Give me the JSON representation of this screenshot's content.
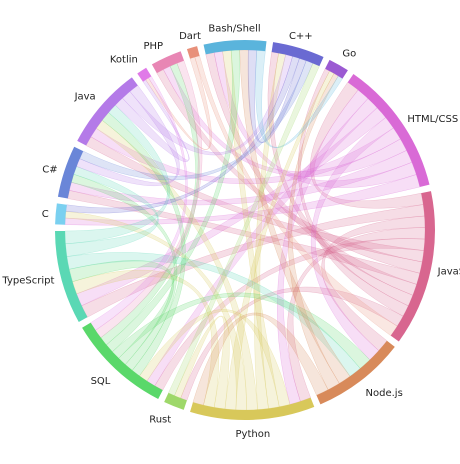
{
  "chart_data": {
    "type": "chord",
    "groups": [
      {
        "name": "Bash/Shell",
        "color": "#5ab4dc",
        "value": 6
      },
      {
        "name": "C++",
        "color": "#6a6ad2",
        "value": 5
      },
      {
        "name": "Go",
        "color": "#9b5ad2",
        "value": 2
      },
      {
        "name": "HTML/CSS",
        "color": "#d96ad6",
        "value": 13
      },
      {
        "name": "JavaScript",
        "color": "#d8668f",
        "value": 15
      },
      {
        "name": "Node.js",
        "color": "#d88a5a",
        "value": 9
      },
      {
        "name": "Python",
        "color": "#d8c85a",
        "value": 12
      },
      {
        "name": "Rust",
        "color": "#9ed86a",
        "value": 2
      },
      {
        "name": "SQL",
        "color": "#5ad86a",
        "value": 10
      },
      {
        "name": "TypeScript",
        "color": "#5ad8b4",
        "value": 9
      },
      {
        "name": "C",
        "color": "#7ad0f0",
        "value": 2
      },
      {
        "name": "C#",
        "color": "#6a86d8",
        "value": 5
      },
      {
        "name": "Java",
        "color": "#b47ae8",
        "value": 8
      },
      {
        "name": "Kotlin",
        "color": "#e07ae8",
        "value": 1
      },
      {
        "name": "PHP",
        "color": "#e886b4",
        "value": 3
      },
      {
        "name": "Dart",
        "color": "#e8907a",
        "value": 1
      }
    ],
    "links": [
      [
        "JavaScript",
        "HTML/CSS"
      ],
      [
        "JavaScript",
        "TypeScript"
      ],
      [
        "JavaScript",
        "Node.js"
      ],
      [
        "JavaScript",
        "Python"
      ],
      [
        "JavaScript",
        "SQL"
      ],
      [
        "JavaScript",
        "Java"
      ],
      [
        "JavaScript",
        "PHP"
      ],
      [
        "JavaScript",
        "C#"
      ],
      [
        "JavaScript",
        "Bash/Shell"
      ],
      [
        "JavaScript",
        "C++"
      ],
      [
        "JavaScript",
        "Go"
      ],
      [
        "JavaScript",
        "Rust"
      ],
      [
        "HTML/CSS",
        "Python"
      ],
      [
        "HTML/CSS",
        "SQL"
      ],
      [
        "HTML/CSS",
        "TypeScript"
      ],
      [
        "HTML/CSS",
        "Node.js"
      ],
      [
        "HTML/CSS",
        "Java"
      ],
      [
        "HTML/CSS",
        "PHP"
      ],
      [
        "HTML/CSS",
        "C#"
      ],
      [
        "HTML/CSS",
        "Bash/Shell"
      ],
      [
        "HTML/CSS",
        "C"
      ],
      [
        "Python",
        "SQL"
      ],
      [
        "Python",
        "Bash/Shell"
      ],
      [
        "Python",
        "C++"
      ],
      [
        "Python",
        "Java"
      ],
      [
        "Python",
        "C"
      ],
      [
        "Python",
        "Go"
      ],
      [
        "Python",
        "Rust"
      ],
      [
        "Python",
        "TypeScript"
      ],
      [
        "SQL",
        "Java"
      ],
      [
        "SQL",
        "C#"
      ],
      [
        "SQL",
        "TypeScript"
      ],
      [
        "SQL",
        "Node.js"
      ],
      [
        "SQL",
        "Bash/Shell"
      ],
      [
        "SQL",
        "PHP"
      ],
      [
        "TypeScript",
        "Node.js"
      ],
      [
        "TypeScript",
        "C#"
      ],
      [
        "TypeScript",
        "Java"
      ],
      [
        "Node.js",
        "Bash/Shell"
      ],
      [
        "Node.js",
        "Go"
      ],
      [
        "Node.js",
        "Python"
      ],
      [
        "Java",
        "Kotlin"
      ],
      [
        "Java",
        "C++"
      ],
      [
        "Java",
        "C#"
      ],
      [
        "C++",
        "C"
      ],
      [
        "C++",
        "Bash/Shell"
      ],
      [
        "C#",
        "C++"
      ],
      [
        "Bash/Shell",
        "Go"
      ],
      [
        "Rust",
        "C++"
      ],
      [
        "Dart",
        "Kotlin"
      ],
      [
        "Dart",
        "JavaScript"
      ],
      [
        "PHP",
        "SQL"
      ],
      [
        "Kotlin",
        "SQL"
      ]
    ]
  }
}
